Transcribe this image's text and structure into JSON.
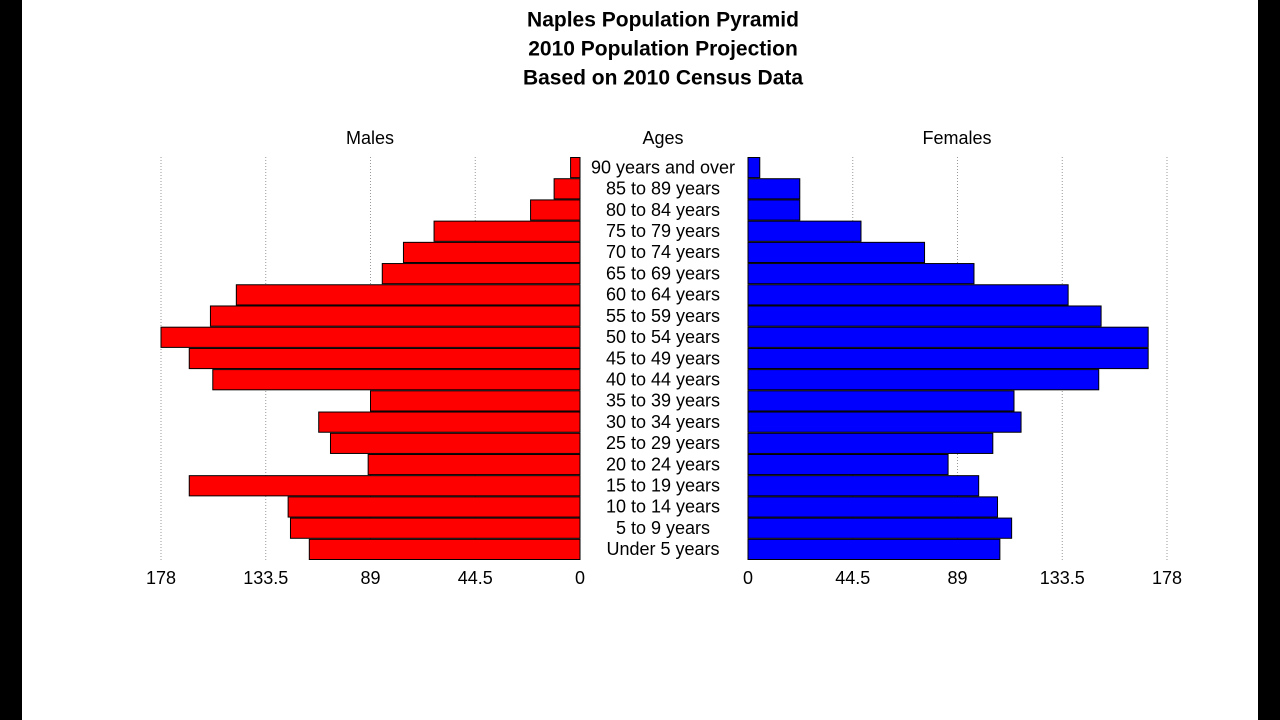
{
  "chart_data": {
    "type": "pyramid",
    "title": [
      "Naples Population Pyramid",
      "2010 Population Projection",
      "Based on 2010 Census Data"
    ],
    "category_label": "Ages",
    "categories": [
      "90 years and over",
      "85 to 89 years",
      "80 to 84 years",
      "75 to 79 years",
      "70 to 74 years",
      "65 to 69 years",
      "60 to 64 years",
      "55 to 59 years",
      "50 to 54 years",
      "45 to 49 years",
      "40 to 44 years",
      "35 to 39 years",
      "30 to 34 years",
      "25 to 29 years",
      "20 to 24 years",
      "15 to 19 years",
      "10 to 14 years",
      "5 to 9 years",
      "Under 5 years"
    ],
    "series": [
      {
        "name": "Males",
        "color": "#ff0000",
        "values": [
          4,
          11,
          21,
          62,
          75,
          84,
          146,
          157,
          178,
          166,
          156,
          89,
          111,
          106,
          90,
          166,
          124,
          123,
          115
        ]
      },
      {
        "name": "Females",
        "color": "#0000ff",
        "values": [
          5,
          22,
          22,
          48,
          75,
          96,
          136,
          150,
          170,
          170,
          149,
          113,
          116,
          104,
          85,
          98,
          106,
          112,
          107
        ]
      }
    ],
    "xlim": [
      0,
      178
    ],
    "xticks": [
      0,
      44.5,
      89,
      133.5,
      178
    ],
    "grid": true
  }
}
